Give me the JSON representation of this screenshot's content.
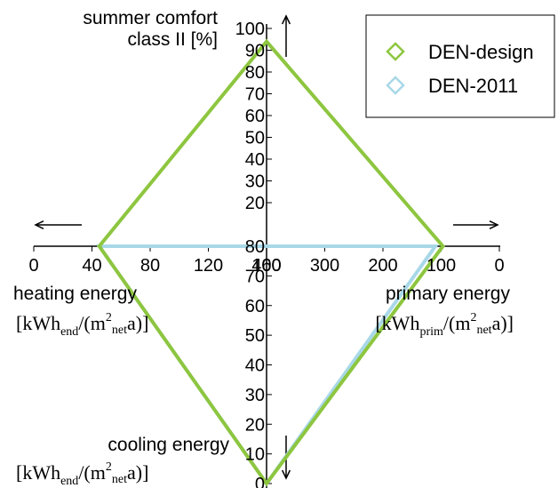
{
  "chart_data": {
    "type": "radar",
    "axes": [
      {
        "key": "comfort",
        "label_lines": [
          "summer comfort",
          "class II [%]"
        ],
        "ticks": [
          20,
          30,
          40,
          50,
          60,
          70,
          80,
          90,
          100
        ],
        "range": [
          0,
          100
        ]
      },
      {
        "key": "primary",
        "label": "primary energy",
        "unit": {
          "pre": "[kWh",
          "sub": "prim",
          "mid": "/(m",
          "sup": "2",
          "sub2": "net",
          "post": "a)]"
        },
        "ticks": [
          400,
          300,
          200,
          100,
          0
        ],
        "range": [
          0,
          400
        ]
      },
      {
        "key": "cooling",
        "label": "cooling energy",
        "unit": {
          "pre": "[kWh",
          "sub": "end",
          "mid": "/(m",
          "sup": "2",
          "sub2": "net",
          "post": "a)]"
        },
        "ticks": [
          0,
          10,
          20,
          30,
          40,
          50,
          60,
          70,
          80
        ],
        "range": [
          0,
          80
        ]
      },
      {
        "key": "heating",
        "label": "heating energy",
        "unit": {
          "pre": "[kWh",
          "sub": "end",
          "mid": "/(m",
          "sup": "2",
          "sub2": "net",
          "post": "a)]"
        },
        "ticks": [
          0,
          40,
          80,
          120,
          160
        ],
        "range": [
          0,
          160
        ]
      }
    ],
    "series": [
      {
        "name": "DEN-design",
        "color": "#8dc63f",
        "values": {
          "comfort": 94,
          "primary": 97,
          "cooling": 0,
          "heating": 45
        }
      },
      {
        "name": "DEN-2011",
        "color": "#a8d8e8",
        "values": {
          "comfort": 0,
          "primary": 110,
          "cooling": 0,
          "heating": 45
        }
      }
    ],
    "legend": "top-right"
  }
}
